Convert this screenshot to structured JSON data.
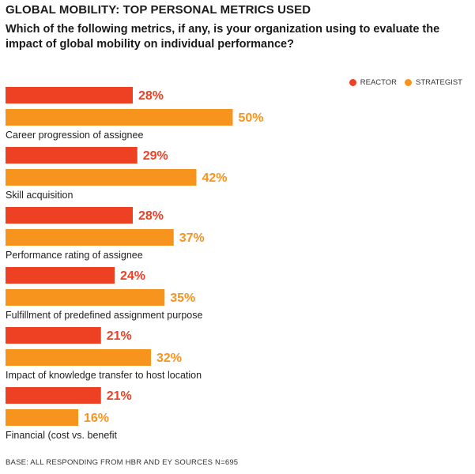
{
  "title": "GLOBAL MOBILITY: TOP PERSONAL METRICS USED",
  "subtitle": "Which of the following metrics, if any, is your organization using to evaluate the impact of global mobility on individual performance?",
  "footnote": "BASE: ALL RESPONDING FROM HBR AND EY SOURCES N=695",
  "colors": {
    "reactor": "#ee4124",
    "strategist": "#f7941d"
  },
  "chart_data": {
    "type": "bar",
    "orientation": "horizontal",
    "categories": [
      "Career progression of assignee",
      "Skill acquisition",
      "Performance rating of assignee",
      "Fulfillment of predefined assignment purpose",
      "Impact of knowledge transfer to host location",
      "Financial (cost vs. benefit"
    ],
    "series": [
      {
        "name": "REACTOR",
        "values": [
          28,
          29,
          28,
          24,
          21,
          21
        ]
      },
      {
        "name": "STRATEGIST",
        "values": [
          50,
          42,
          37,
          35,
          32,
          16
        ]
      }
    ],
    "value_suffix": "%",
    "legend": "top-right",
    "grid": false
  }
}
